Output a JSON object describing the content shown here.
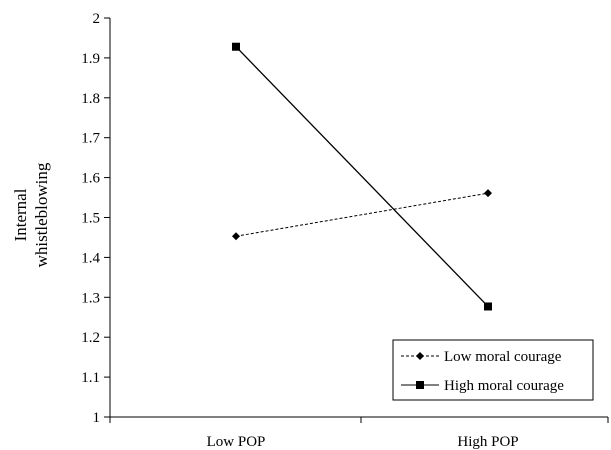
{
  "chart_data": {
    "type": "line",
    "categories": [
      "Low POP",
      "High POP"
    ],
    "series": [
      {
        "name": "Low moral courage",
        "values": [
          1.453,
          1.561
        ],
        "dash": true,
        "marker": "diamond"
      },
      {
        "name": "High moral courage",
        "values": [
          1.928,
          1.277
        ],
        "dash": false,
        "marker": "square"
      }
    ],
    "ylabel_lines": [
      "Internal",
      "whistleblowing"
    ],
    "ylim": [
      1,
      2
    ],
    "yticks": [
      "1",
      "1.1",
      "1.2",
      "1.3",
      "1.4",
      "1.5",
      "1.6",
      "1.7",
      "1.8",
      "1.9",
      "2"
    ],
    "grid": false,
    "legend_position": "bottom-right",
    "colors": {
      "line": "#000000"
    }
  }
}
